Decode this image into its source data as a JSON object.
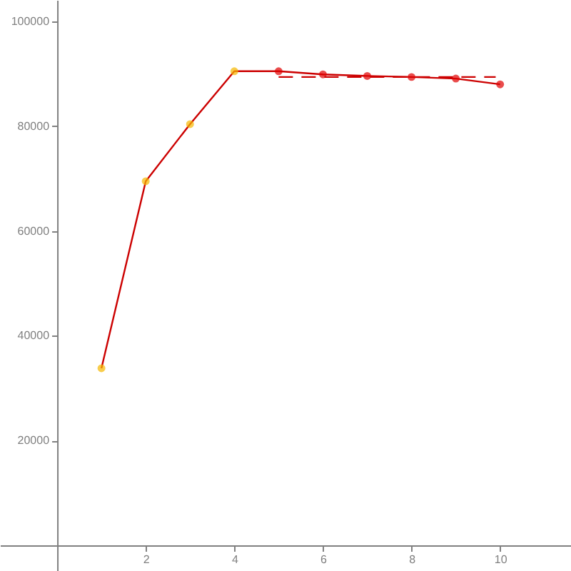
{
  "chart_data": {
    "type": "line",
    "xlim": [
      -1.29,
      11.6
    ],
    "ylim": [
      -4900,
      104100
    ],
    "xticks": [
      2,
      4,
      6,
      8,
      10
    ],
    "yticks": [
      20000,
      40000,
      60000,
      80000,
      100000
    ],
    "marker": "circle",
    "line_style": "solid",
    "series": [
      {
        "color": "#cc0000",
        "x": [
          1,
          2,
          3,
          4,
          5,
          6,
          7,
          8,
          9,
          10
        ],
        "values": [
          33800,
          69500,
          80400,
          90500,
          90500,
          89900,
          89600,
          89400,
          89100,
          88000
        ],
        "colors": [
          "#f5b800",
          "#f5b800",
          "#f5b800",
          "#f5b800",
          "#e00000",
          "#e00000",
          "#e00000",
          "#e00000",
          "#e00000",
          "#e00000"
        ]
      },
      {
        "color": "#cc0000",
        "line_style": "dashed",
        "marker": "none",
        "x": [
          5,
          9.9
        ],
        "values": [
          89400,
          89400
        ]
      }
    ]
  }
}
